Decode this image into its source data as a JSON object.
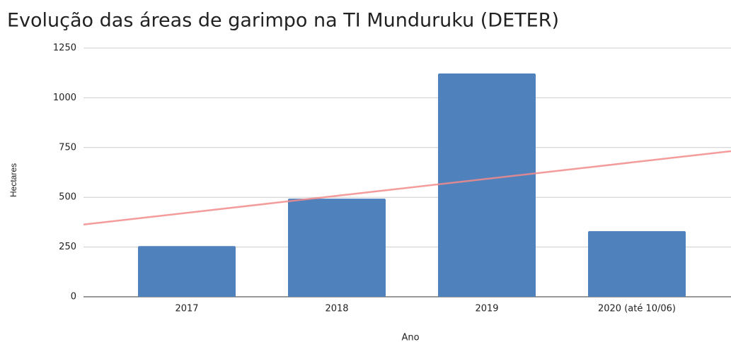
{
  "chart_data": {
    "type": "bar",
    "title": "Evolução das áreas de garimpo na TI Munduruku (DETER)",
    "x_label": "Ano",
    "y_label": "Hectares",
    "categories": [
      "2017",
      "2018",
      "2019",
      "2020 (até 10/06)"
    ],
    "values": [
      255,
      493,
      1122,
      330
    ],
    "color": "#4f81bd",
    "ylim": [
      0,
      1250
    ],
    "yticks": [
      0,
      250,
      500,
      750,
      1000,
      1250
    ],
    "grid": true,
    "trendline": true,
    "trendline_color": "#f28b8b"
  }
}
